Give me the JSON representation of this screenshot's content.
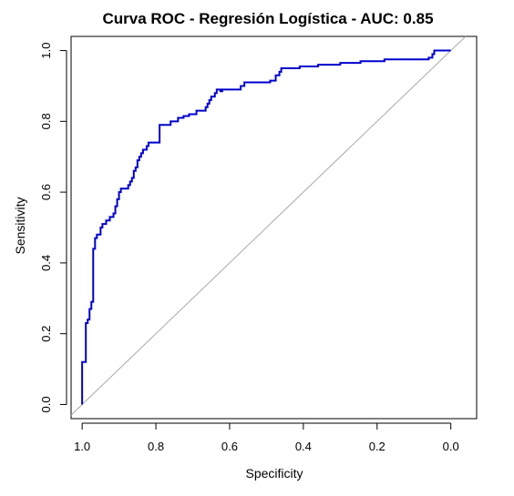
{
  "chart_data": {
    "type": "line",
    "title": "Curva ROC - Regresión Logística - AUC: 0.85",
    "xlabel": "Specificity",
    "ylabel": "Sensitivity",
    "x_reversed": true,
    "xlim": [
      1.03,
      -0.07
    ],
    "ylim": [
      -0.04,
      1.04
    ],
    "x_ticks": [
      1.0,
      0.8,
      0.6,
      0.4,
      0.2,
      0.0
    ],
    "x_tick_labels": [
      "1.0",
      "0.8",
      "0.6",
      "0.4",
      "0.2",
      "0.0"
    ],
    "y_ticks": [
      0.0,
      0.2,
      0.4,
      0.6,
      0.8,
      1.0
    ],
    "y_tick_labels": [
      "0.0",
      "0.2",
      "0.4",
      "0.6",
      "0.8",
      "1.0"
    ],
    "grid": false,
    "series": [
      {
        "color": "#0000cd",
        "points": [
          [
            1.0,
            0.0
          ],
          [
            1.0,
            0.12
          ],
          [
            0.99,
            0.12
          ],
          [
            0.99,
            0.23
          ],
          [
            0.985,
            0.23
          ],
          [
            0.985,
            0.24
          ],
          [
            0.98,
            0.24
          ],
          [
            0.98,
            0.27
          ],
          [
            0.975,
            0.27
          ],
          [
            0.975,
            0.29
          ],
          [
            0.97,
            0.29
          ],
          [
            0.97,
            0.44
          ],
          [
            0.965,
            0.44
          ],
          [
            0.965,
            0.47
          ],
          [
            0.96,
            0.47
          ],
          [
            0.96,
            0.48
          ],
          [
            0.95,
            0.48
          ],
          [
            0.95,
            0.5
          ],
          [
            0.945,
            0.5
          ],
          [
            0.945,
            0.51
          ],
          [
            0.935,
            0.51
          ],
          [
            0.935,
            0.52
          ],
          [
            0.925,
            0.52
          ],
          [
            0.925,
            0.53
          ],
          [
            0.915,
            0.53
          ],
          [
            0.915,
            0.54
          ],
          [
            0.91,
            0.54
          ],
          [
            0.91,
            0.56
          ],
          [
            0.905,
            0.56
          ],
          [
            0.905,
            0.58
          ],
          [
            0.9,
            0.58
          ],
          [
            0.9,
            0.6
          ],
          [
            0.895,
            0.6
          ],
          [
            0.895,
            0.61
          ],
          [
            0.875,
            0.61
          ],
          [
            0.875,
            0.62
          ],
          [
            0.87,
            0.62
          ],
          [
            0.87,
            0.63
          ],
          [
            0.865,
            0.63
          ],
          [
            0.865,
            0.64
          ],
          [
            0.86,
            0.64
          ],
          [
            0.86,
            0.66
          ],
          [
            0.855,
            0.66
          ],
          [
            0.855,
            0.67
          ],
          [
            0.85,
            0.67
          ],
          [
            0.85,
            0.69
          ],
          [
            0.845,
            0.69
          ],
          [
            0.845,
            0.7
          ],
          [
            0.84,
            0.7
          ],
          [
            0.84,
            0.71
          ],
          [
            0.835,
            0.71
          ],
          [
            0.835,
            0.72
          ],
          [
            0.825,
            0.72
          ],
          [
            0.825,
            0.73
          ],
          [
            0.82,
            0.73
          ],
          [
            0.82,
            0.74
          ],
          [
            0.79,
            0.74
          ],
          [
            0.79,
            0.79
          ],
          [
            0.76,
            0.79
          ],
          [
            0.76,
            0.8
          ],
          [
            0.74,
            0.8
          ],
          [
            0.74,
            0.81
          ],
          [
            0.725,
            0.81
          ],
          [
            0.725,
            0.815
          ],
          [
            0.71,
            0.815
          ],
          [
            0.71,
            0.82
          ],
          [
            0.69,
            0.82
          ],
          [
            0.69,
            0.83
          ],
          [
            0.665,
            0.83
          ],
          [
            0.665,
            0.84
          ],
          [
            0.66,
            0.84
          ],
          [
            0.66,
            0.85
          ],
          [
            0.655,
            0.85
          ],
          [
            0.655,
            0.86
          ],
          [
            0.65,
            0.86
          ],
          [
            0.65,
            0.87
          ],
          [
            0.64,
            0.87
          ],
          [
            0.64,
            0.88
          ],
          [
            0.635,
            0.88
          ],
          [
            0.635,
            0.89
          ],
          [
            0.625,
            0.89
          ],
          [
            0.625,
            0.885
          ],
          [
            0.62,
            0.885
          ],
          [
            0.62,
            0.89
          ],
          [
            0.57,
            0.89
          ],
          [
            0.57,
            0.9
          ],
          [
            0.56,
            0.9
          ],
          [
            0.56,
            0.91
          ],
          [
            0.49,
            0.91
          ],
          [
            0.49,
            0.915
          ],
          [
            0.475,
            0.915
          ],
          [
            0.475,
            0.93
          ],
          [
            0.465,
            0.93
          ],
          [
            0.465,
            0.94
          ],
          [
            0.46,
            0.94
          ],
          [
            0.46,
            0.95
          ],
          [
            0.41,
            0.95
          ],
          [
            0.41,
            0.955
          ],
          [
            0.36,
            0.955
          ],
          [
            0.36,
            0.96
          ],
          [
            0.3,
            0.96
          ],
          [
            0.3,
            0.965
          ],
          [
            0.245,
            0.965
          ],
          [
            0.245,
            0.97
          ],
          [
            0.18,
            0.97
          ],
          [
            0.18,
            0.975
          ],
          [
            0.06,
            0.975
          ],
          [
            0.06,
            0.98
          ],
          [
            0.05,
            0.98
          ],
          [
            0.05,
            0.99
          ],
          [
            0.045,
            0.99
          ],
          [
            0.045,
            1.0
          ],
          [
            0.0,
            1.0
          ]
        ]
      }
    ],
    "reference_line": {
      "color": "#aaaaaa",
      "points": [
        [
          1.03,
          -0.03
        ],
        [
          -0.04,
          1.04
        ]
      ]
    }
  }
}
